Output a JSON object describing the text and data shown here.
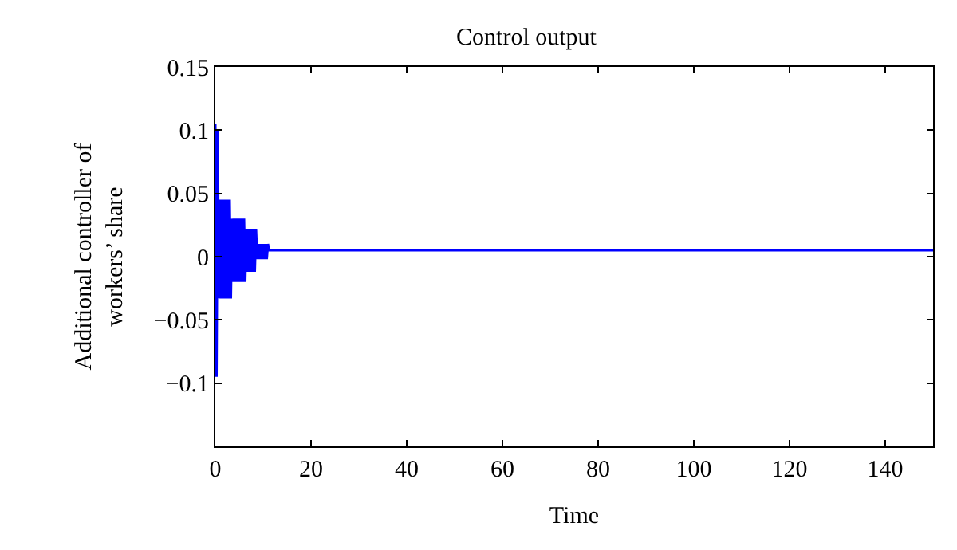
{
  "chart_data": {
    "type": "line",
    "title": "Control output",
    "xlabel": "Time",
    "ylabel": "Additional controller of\nworkers’ share",
    "xlim": [
      0,
      150
    ],
    "xticks": [
      0,
      20,
      40,
      60,
      80,
      100,
      120,
      140
    ],
    "ylim": [
      -0.15,
      0.15
    ],
    "yticks": [
      0.15,
      0.1,
      0.05,
      0,
      {
        "value": -0.05,
        "label": "−0.05"
      },
      {
        "value": -0.1,
        "label": "−0.1"
      }
    ],
    "marker": "none",
    "line_style": "solid",
    "series": [
      {
        "color": "#0000ff",
        "x": [
          0,
          0.25,
          0.5,
          0.75,
          1,
          1.25,
          1.5,
          1.75,
          2,
          2.25,
          2.5,
          2.75,
          3,
          3.25,
          3.5,
          3.75,
          4,
          4.25,
          4.5,
          4.75,
          5,
          5.25,
          5.5,
          5.75,
          6,
          6.25,
          6.5,
          6.75,
          7,
          7.25,
          7.5,
          7.75,
          8,
          8.25,
          8.5,
          8.75,
          9,
          9.25,
          9.5,
          9.75,
          10,
          10.25,
          10.5,
          10.75,
          11,
          11.25,
          150
        ],
        "values": [
          0.105,
          -0.095,
          0.1,
          -0.033,
          0.045,
          -0.033,
          0.045,
          -0.033,
          0.045,
          -0.033,
          0.045,
          -0.033,
          0.045,
          -0.033,
          0.03,
          -0.02,
          0.03,
          -0.02,
          0.03,
          -0.02,
          0.03,
          -0.02,
          0.03,
          -0.02,
          0.03,
          -0.02,
          0.022,
          -0.012,
          0.022,
          -0.012,
          0.022,
          -0.012,
          0.022,
          -0.012,
          0.022,
          -0.002,
          0.01,
          -0.002,
          0.01,
          -0.002,
          0.01,
          -0.002,
          0.01,
          -0.002,
          0.01,
          0.005,
          0.005
        ]
      }
    ]
  }
}
